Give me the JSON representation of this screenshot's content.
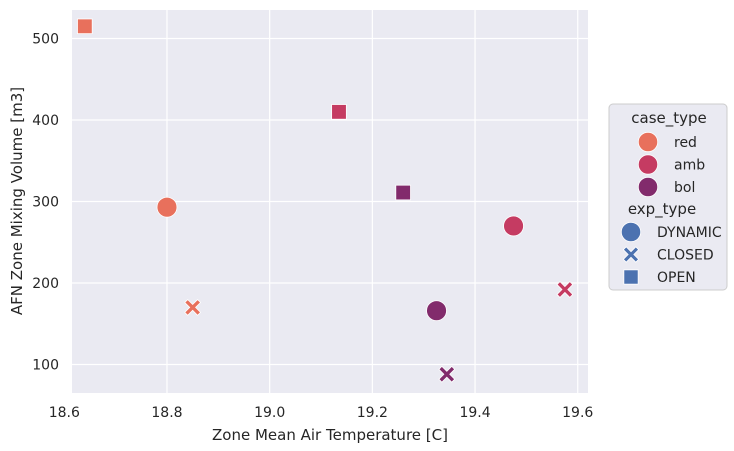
{
  "chart_data": {
    "type": "scatter",
    "xlabel": "Zone Mean Air Temperature [C]",
    "ylabel": "AFN Zone Mixing Volume [m3]",
    "xlim": [
      18.615,
      19.62
    ],
    "ylim": [
      65,
      535
    ],
    "x_ticks": [
      "18.6",
      "18.8",
      "19.0",
      "19.2",
      "19.4",
      "19.6"
    ],
    "x_tick_values": [
      18.6,
      18.8,
      19.0,
      19.2,
      19.4,
      19.6
    ],
    "y_ticks": [
      "100",
      "200",
      "300",
      "400",
      "500"
    ],
    "y_tick_values": [
      100,
      200,
      300,
      400,
      500
    ],
    "grid": true,
    "legend_position": "right",
    "colors": {
      "red": "#e8705c",
      "amb": "#c53b62",
      "bol": "#822b6c",
      "plot_bg": "#eaeaf2",
      "legend_marker": "#4c72b0"
    },
    "points": [
      {
        "x": 18.64,
        "y": 515,
        "case_type": "red",
        "exp_type": "OPEN"
      },
      {
        "x": 18.8,
        "y": 293,
        "case_type": "red",
        "exp_type": "DYNAMIC"
      },
      {
        "x": 18.85,
        "y": 170,
        "case_type": "red",
        "exp_type": "CLOSED"
      },
      {
        "x": 19.135,
        "y": 410,
        "case_type": "amb",
        "exp_type": "OPEN"
      },
      {
        "x": 19.475,
        "y": 270,
        "case_type": "amb",
        "exp_type": "DYNAMIC"
      },
      {
        "x": 19.575,
        "y": 192,
        "case_type": "amb",
        "exp_type": "CLOSED"
      },
      {
        "x": 19.26,
        "y": 311,
        "case_type": "bol",
        "exp_type": "OPEN"
      },
      {
        "x": 19.325,
        "y": 166,
        "case_type": "bol",
        "exp_type": "DYNAMIC"
      },
      {
        "x": 19.345,
        "y": 88,
        "case_type": "bol",
        "exp_type": "CLOSED"
      }
    ],
    "legend": {
      "case_title": "case_type",
      "case_items": [
        {
          "label": "red",
          "color": "#e8705c"
        },
        {
          "label": "amb",
          "color": "#c53b62"
        },
        {
          "label": "bol",
          "color": "#822b6c"
        }
      ],
      "exp_title": "exp_type",
      "exp_items": [
        {
          "label": "DYNAMIC",
          "marker": "circle"
        },
        {
          "label": "CLOSED",
          "marker": "x"
        },
        {
          "label": "OPEN",
          "marker": "square"
        }
      ]
    }
  }
}
